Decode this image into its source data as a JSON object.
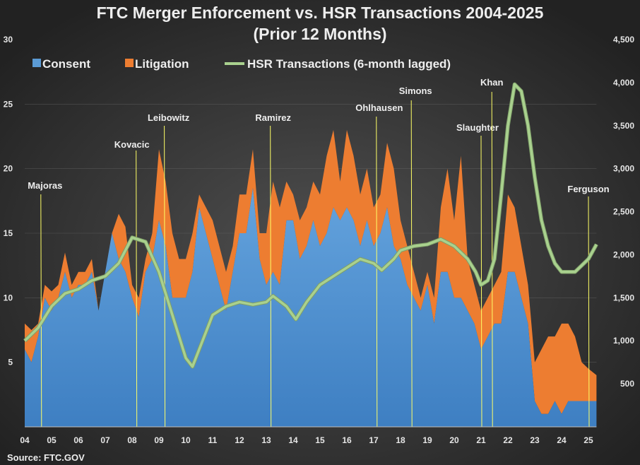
{
  "chart_data": {
    "type": "area",
    "title": "FTC Merger Enforcement vs. HSR Transactions  2004-2025",
    "subtitle": "(Prior 12 Months)",
    "source": "Source: FTC.GOV",
    "left_axis": {
      "ylim": [
        0,
        30
      ],
      "ticks": [
        "",
        "5",
        "10",
        "15",
        "20",
        "25",
        "30"
      ],
      "tick_values": [
        0,
        5,
        10,
        15,
        20,
        25,
        30
      ]
    },
    "right_axis": {
      "ylim": [
        0,
        4500
      ],
      "ticks": [
        "",
        "500",
        "1,000",
        "1,500",
        "2,000",
        "2,500",
        "3,000",
        "3,500",
        "4,000",
        "4,500"
      ],
      "tick_values": [
        0,
        500,
        1000,
        1500,
        2000,
        2500,
        3000,
        3500,
        4000,
        4500
      ]
    },
    "x_ticks": [
      "04",
      "05",
      "06",
      "07",
      "08",
      "09",
      "10",
      "11",
      "12",
      "13",
      "14",
      "15",
      "16",
      "17",
      "18",
      "19",
      "20",
      "21",
      "22",
      "23",
      "24",
      "25"
    ],
    "xlim": [
      2004,
      2025.3
    ],
    "legend": {
      "placement": "top",
      "entries": [
        "Consent",
        "Litigation",
        "HSR Transactions (6-month lagged)"
      ]
    },
    "colors": {
      "consent": "#5b9bd5",
      "litigation": "#ed7d31",
      "hsr": "#a9d18e",
      "marker": "#ffff66"
    },
    "series": [
      {
        "name": "Consent",
        "axis": "left",
        "x": [
          2004,
          2004.25,
          2004.5,
          2004.75,
          2005,
          2005.25,
          2005.5,
          2005.75,
          2006,
          2006.25,
          2006.5,
          2006.75,
          2007,
          2007.25,
          2007.5,
          2007.75,
          2008,
          2008.25,
          2008.5,
          2008.75,
          2009,
          2009.25,
          2009.5,
          2009.75,
          2010,
          2010.25,
          2010.5,
          2010.75,
          2011,
          2011.25,
          2011.5,
          2011.75,
          2012,
          2012.25,
          2012.5,
          2012.75,
          2013,
          2013.25,
          2013.5,
          2013.75,
          2014,
          2014.25,
          2014.5,
          2014.75,
          2015,
          2015.25,
          2015.5,
          2015.75,
          2016,
          2016.25,
          2016.5,
          2016.75,
          2017,
          2017.25,
          2017.5,
          2017.75,
          2018,
          2018.25,
          2018.5,
          2018.75,
          2019,
          2019.25,
          2019.5,
          2019.75,
          2020,
          2020.25,
          2020.5,
          2020.75,
          2021,
          2021.25,
          2021.5,
          2021.75,
          2022,
          2022.25,
          2022.5,
          2022.75,
          2023,
          2023.25,
          2023.5,
          2023.75,
          2024,
          2024.25,
          2024.5,
          2024.75,
          2025,
          2025.3
        ],
        "values": [
          6,
          5,
          7,
          10,
          9,
          10,
          12,
          10,
          11,
          11,
          12,
          9,
          12,
          15,
          13,
          12,
          10,
          8.5,
          12,
          13,
          16,
          14,
          10,
          10,
          10,
          12,
          17,
          15,
          13,
          11,
          9,
          12,
          15,
          15,
          18.5,
          13,
          11,
          12,
          11,
          16,
          16,
          13,
          14,
          16,
          14,
          15,
          17,
          16,
          17,
          16,
          14,
          16,
          14,
          15,
          17,
          14,
          13,
          11,
          10,
          9,
          11,
          8,
          12,
          12,
          10,
          10,
          9,
          8,
          6,
          7,
          8,
          8,
          12,
          12,
          10,
          8,
          2,
          1,
          1,
          2,
          1,
          2,
          2,
          2,
          2,
          2
        ]
      },
      {
        "name": "Litigation",
        "axis": "left",
        "stacked_on": "Consent",
        "values": [
          2,
          2.5,
          1,
          1,
          1.5,
          1,
          1.5,
          1,
          1,
          1,
          1,
          0,
          0,
          0,
          3.5,
          3.5,
          1,
          1.5,
          1,
          2,
          5.5,
          5,
          5,
          3,
          3,
          3,
          1,
          2,
          3,
          3,
          3,
          2,
          3,
          3,
          3,
          2,
          4,
          7,
          6,
          3,
          2,
          3,
          3,
          3,
          4,
          6,
          6,
          3,
          6,
          5,
          4,
          4,
          3,
          3,
          5,
          6,
          3,
          3,
          2,
          1,
          1,
          2,
          5,
          8,
          6,
          11,
          4,
          3,
          3,
          3,
          3,
          4,
          6,
          5,
          4,
          3,
          3,
          5,
          6,
          5,
          7,
          6,
          5,
          3,
          2.5,
          2
        ]
      },
      {
        "name": "HSR Transactions (6-month lagged)",
        "axis": "right",
        "x": [
          2004,
          2004.5,
          2005,
          2005.5,
          2006,
          2006.5,
          2007,
          2007.5,
          2008,
          2008.5,
          2009,
          2009.5,
          2010,
          2010.25,
          2010.5,
          2011,
          2011.5,
          2012,
          2012.5,
          2013,
          2013.25,
          2013.75,
          2014.1,
          2014.5,
          2015,
          2015.5,
          2016,
          2016.5,
          2017,
          2017.3,
          2017.75,
          2018,
          2018.5,
          2019,
          2019.5,
          2020,
          2020.5,
          2020.8,
          2021,
          2021.25,
          2021.5,
          2021.75,
          2022,
          2022.25,
          2022.5,
          2022.75,
          2023,
          2023.25,
          2023.5,
          2023.75,
          2024,
          2024.5,
          2025,
          2025.3
        ],
        "values": [
          1000,
          1150,
          1400,
          1550,
          1600,
          1700,
          1750,
          1900,
          2200,
          2150,
          1800,
          1300,
          800,
          700,
          900,
          1300,
          1400,
          1450,
          1420,
          1450,
          1520,
          1400,
          1250,
          1450,
          1650,
          1750,
          1850,
          1950,
          1900,
          1820,
          1950,
          2050,
          2100,
          2120,
          2180,
          2100,
          1950,
          1800,
          1650,
          1700,
          1950,
          2700,
          3500,
          3980,
          3900,
          3500,
          2900,
          2400,
          2100,
          1900,
          1800,
          1800,
          1950,
          2120
        ]
      }
    ],
    "annotations": [
      {
        "label": "Majoras",
        "x": 2004.6
      },
      {
        "label": "Kovacic",
        "x": 2008.15
      },
      {
        "label": "Leibowitz",
        "x": 2009.2
      },
      {
        "label": "Ramirez",
        "x": 2013.15
      },
      {
        "label": "Ohlhausen",
        "x": 2017.1
      },
      {
        "label": "Simons",
        "x": 2018.4
      },
      {
        "label": "Slaughter",
        "x": 2021.0
      },
      {
        "label": "Khan",
        "x": 2021.4
      },
      {
        "label": "Ferguson",
        "x": 2025.0
      }
    ]
  }
}
